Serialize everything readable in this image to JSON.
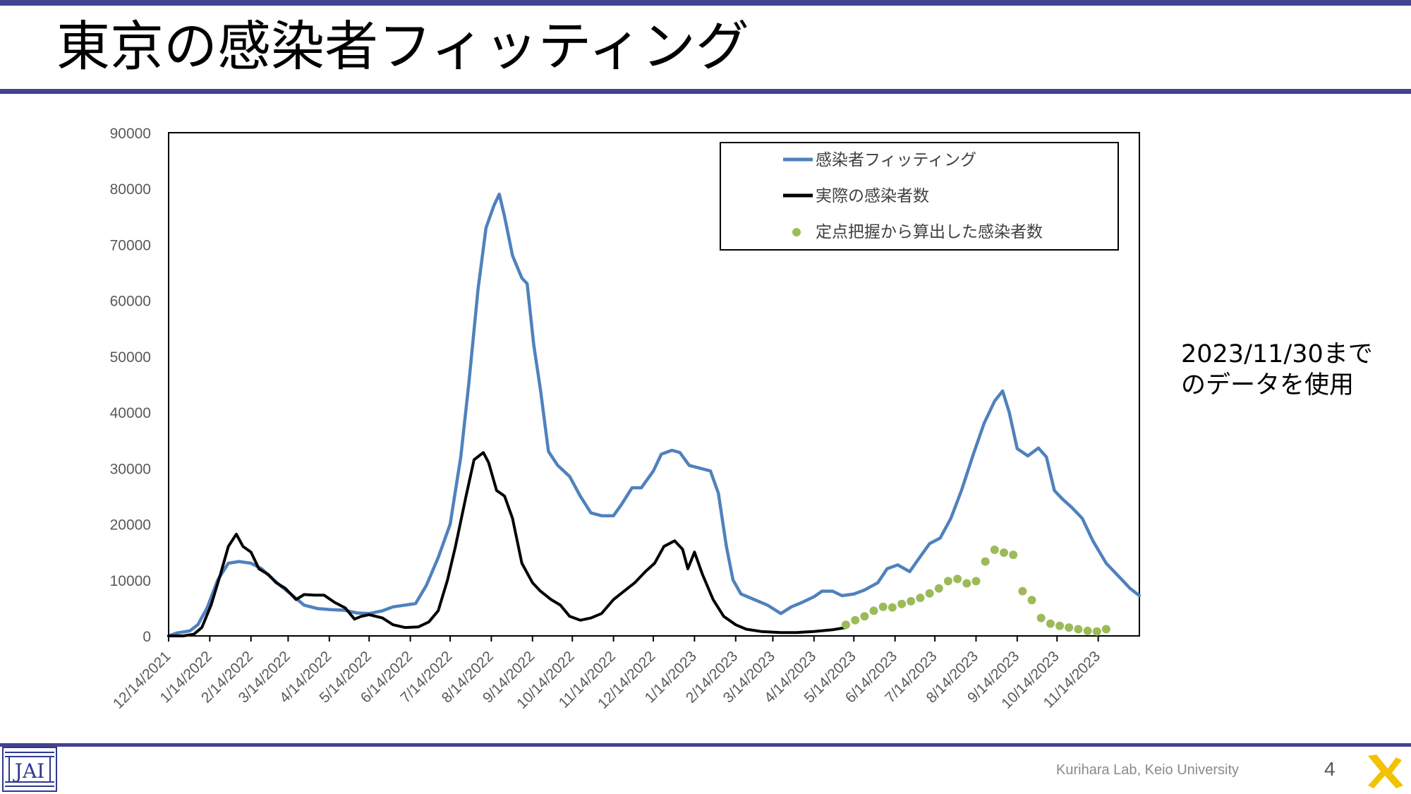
{
  "slide": {
    "title": "東京の感染者フィッティング",
    "note_line1": "2023/11/30まで",
    "note_line2": "のデータを使用",
    "footer": "Kurihara Lab, Keio University",
    "page_number": "4"
  },
  "colors": {
    "rule": "#43438f",
    "fit": "#4f81bd",
    "actual": "#000000",
    "estimate": "#9bbb59"
  },
  "chart_data": {
    "type": "line",
    "title": "",
    "xlabel": "",
    "ylabel": "",
    "ylim": [
      0,
      90000
    ],
    "yticks": [
      0,
      10000,
      20000,
      30000,
      40000,
      50000,
      60000,
      70000,
      80000,
      90000
    ],
    "x_start": "12/14/2021",
    "x_end": "12/15/2023",
    "xtick_labels": [
      "12/14/2021",
      "1/14/2022",
      "2/14/2022",
      "3/14/2022",
      "4/14/2022",
      "5/14/2022",
      "6/14/2022",
      "7/14/2022",
      "8/14/2022",
      "9/14/2022",
      "10/14/2022",
      "11/14/2022",
      "12/14/2022",
      "1/14/2023",
      "2/14/2023",
      "3/14/2023",
      "4/14/2023",
      "5/14/2023",
      "6/14/2023",
      "7/14/2023",
      "8/14/2023",
      "9/14/2023",
      "10/14/2023",
      "11/14/2023"
    ],
    "grid": false,
    "legend_position": "top-right",
    "series": [
      {
        "name": "感染者フィッティング",
        "style": "line",
        "color": "#4f81bd",
        "points": [
          [
            "12/14/2021",
            0
          ],
          [
            "12/20/2021",
            500
          ],
          [
            "12/30/2021",
            900
          ],
          [
            "1/5/2022",
            2000
          ],
          [
            "1/12/2022",
            5000
          ],
          [
            "1/20/2022",
            10000
          ],
          [
            "1/28/2022",
            13000
          ],
          [
            "2/5/2022",
            13300
          ],
          [
            "2/14/2022",
            13000
          ],
          [
            "2/22/2022",
            12000
          ],
          [
            "3/1/2022",
            10500
          ],
          [
            "3/8/2022",
            9000
          ],
          [
            "3/16/2022",
            7500
          ],
          [
            "3/26/2022",
            5500
          ],
          [
            "4/5/2022",
            4900
          ],
          [
            "4/15/2022",
            4700
          ],
          [
            "4/25/2022",
            4600
          ],
          [
            "5/5/2022",
            4100
          ],
          [
            "5/14/2022",
            4000
          ],
          [
            "5/24/2022",
            4500
          ],
          [
            "6/1/2022",
            5200
          ],
          [
            "6/10/2022",
            5500
          ],
          [
            "6/18/2022",
            5800
          ],
          [
            "6/26/2022",
            9000
          ],
          [
            "7/5/2022",
            14000
          ],
          [
            "7/14/2022",
            20000
          ],
          [
            "7/22/2022",
            32000
          ],
          [
            "7/28/2022",
            45000
          ],
          [
            "8/4/2022",
            62000
          ],
          [
            "8/10/2022",
            73000
          ],
          [
            "8/16/2022",
            77000
          ],
          [
            "8/20/2022",
            79000
          ],
          [
            "8/24/2022",
            75000
          ],
          [
            "8/30/2022",
            68000
          ],
          [
            "9/6/2022",
            64000
          ],
          [
            "9/10/2022",
            63000
          ],
          [
            "9/15/2022",
            52000
          ],
          [
            "9/20/2022",
            44000
          ],
          [
            "9/26/2022",
            33000
          ],
          [
            "10/3/2022",
            30500
          ],
          [
            "10/12/2022",
            28500
          ],
          [
            "10/20/2022",
            25000
          ],
          [
            "10/28/2022",
            22000
          ],
          [
            "11/5/2022",
            21500
          ],
          [
            "11/14/2022",
            21500
          ],
          [
            "11/20/2022",
            23500
          ],
          [
            "11/28/2022",
            26500
          ],
          [
            "12/5/2022",
            26500
          ],
          [
            "12/14/2022",
            29500
          ],
          [
            "12/20/2022",
            32500
          ],
          [
            "12/28/2022",
            33200
          ],
          [
            "1/3/2023",
            32800
          ],
          [
            "1/10/2023",
            30500
          ],
          [
            "1/18/2023",
            30000
          ],
          [
            "1/26/2023",
            29500
          ],
          [
            "2/1/2023",
            25500
          ],
          [
            "2/7/2023",
            16000
          ],
          [
            "2/12/2023",
            10000
          ],
          [
            "2/18/2023",
            7500
          ],
          [
            "2/28/2023",
            6500
          ],
          [
            "3/10/2023",
            5500
          ],
          [
            "3/20/2023",
            4000
          ],
          [
            "3/28/2023",
            5200
          ],
          [
            "4/5/2023",
            6000
          ],
          [
            "4/14/2023",
            7000
          ],
          [
            "4/20/2023",
            8000
          ],
          [
            "4/28/2023",
            8000
          ],
          [
            "5/5/2023",
            7200
          ],
          [
            "5/14/2023",
            7500
          ],
          [
            "5/22/2023",
            8200
          ],
          [
            "6/1/2023",
            9500
          ],
          [
            "6/8/2023",
            12000
          ],
          [
            "6/16/2023",
            12700
          ],
          [
            "6/25/2023",
            11500
          ],
          [
            "7/1/2023",
            13500
          ],
          [
            "7/10/2023",
            16500
          ],
          [
            "7/18/2023",
            17500
          ],
          [
            "7/26/2023",
            21000
          ],
          [
            "8/3/2023",
            26000
          ],
          [
            "8/12/2023",
            32500
          ],
          [
            "8/20/2023",
            38000
          ],
          [
            "8/28/2023",
            42000
          ],
          [
            "9/3/2023",
            43800
          ],
          [
            "9/8/2023",
            40000
          ],
          [
            "9/14/2023",
            33500
          ],
          [
            "9/22/2023",
            32200
          ],
          [
            "9/30/2023",
            33600
          ],
          [
            "10/6/2023",
            32000
          ],
          [
            "10/12/2023",
            26000
          ],
          [
            "10/18/2023",
            24500
          ],
          [
            "10/25/2023",
            23000
          ],
          [
            "11/2/2023",
            21000
          ],
          [
            "11/10/2023",
            17000
          ],
          [
            "11/20/2023",
            13000
          ],
          [
            "11/30/2023",
            10500
          ],
          [
            "12/8/2023",
            8500
          ],
          [
            "12/15/2023",
            7200
          ]
        ]
      },
      {
        "name": "実際の感染者数",
        "style": "line",
        "color": "#000000",
        "points": [
          [
            "12/14/2021",
            0
          ],
          [
            "12/25/2021",
            0
          ],
          [
            "1/2/2022",
            300
          ],
          [
            "1/8/2022",
            1500
          ],
          [
            "1/15/2022",
            5500
          ],
          [
            "1/22/2022",
            11000
          ],
          [
            "1/28/2022",
            16000
          ],
          [
            "2/3/2022",
            18200
          ],
          [
            "2/8/2022",
            16000
          ],
          [
            "2/14/2022",
            15000
          ],
          [
            "2/20/2022",
            12000
          ],
          [
            "2/27/2022",
            11000
          ],
          [
            "3/5/2022",
            9500
          ],
          [
            "3/12/2022",
            8500
          ],
          [
            "3/20/2022",
            6500
          ],
          [
            "3/26/2022",
            7400
          ],
          [
            "4/3/2022",
            7300
          ],
          [
            "4/10/2022",
            7300
          ],
          [
            "4/18/2022",
            6000
          ],
          [
            "4/26/2022",
            5000
          ],
          [
            "5/3/2022",
            3000
          ],
          [
            "5/8/2022",
            3500
          ],
          [
            "5/14/2022",
            3800
          ],
          [
            "5/24/2022",
            3200
          ],
          [
            "6/1/2022",
            2000
          ],
          [
            "6/10/2022",
            1500
          ],
          [
            "6/20/2022",
            1600
          ],
          [
            "6/28/2022",
            2500
          ],
          [
            "7/5/2022",
            4500
          ],
          [
            "7/12/2022",
            10000
          ],
          [
            "7/18/2022",
            16000
          ],
          [
            "7/26/2022",
            25000
          ],
          [
            "8/1/2022",
            31500
          ],
          [
            "8/8/2022",
            32800
          ],
          [
            "8/12/2022",
            31000
          ],
          [
            "8/18/2022",
            26000
          ],
          [
            "8/24/2022",
            25000
          ],
          [
            "8/30/2022",
            21000
          ],
          [
            "9/6/2022",
            13000
          ],
          [
            "9/14/2022",
            9500
          ],
          [
            "9/20/2022",
            8000
          ],
          [
            "9/28/2022",
            6500
          ],
          [
            "10/5/2022",
            5500
          ],
          [
            "10/12/2022",
            3500
          ],
          [
            "10/20/2022",
            2800
          ],
          [
            "10/28/2022",
            3200
          ],
          [
            "11/5/2022",
            4000
          ],
          [
            "11/14/2022",
            6500
          ],
          [
            "11/22/2022",
            8000
          ],
          [
            "11/30/2022",
            9500
          ],
          [
            "12/8/2022",
            11500
          ],
          [
            "12/15/2022",
            13000
          ],
          [
            "12/22/2022",
            16000
          ],
          [
            "12/30/2022",
            17000
          ],
          [
            "1/5/2023",
            15500
          ],
          [
            "1/9/2023",
            12000
          ],
          [
            "1/14/2023",
            15000
          ],
          [
            "1/20/2023",
            11000
          ],
          [
            "1/28/2023",
            6500
          ],
          [
            "2/5/2023",
            3500
          ],
          [
            "2/14/2023",
            2000
          ],
          [
            "2/22/2023",
            1200
          ],
          [
            "3/5/2023",
            800
          ],
          [
            "3/20/2023",
            600
          ],
          [
            "4/1/2023",
            600
          ],
          [
            "4/14/2023",
            800
          ],
          [
            "4/28/2023",
            1100
          ],
          [
            "5/8/2023",
            1500
          ]
        ]
      },
      {
        "name": "定点把握から算出した感染者数",
        "style": "points",
        "color": "#9bbb59",
        "points": [
          [
            "5/8/2023",
            2000
          ],
          [
            "5/15/2023",
            2800
          ],
          [
            "5/22/2023",
            3500
          ],
          [
            "5/29/2023",
            4500
          ],
          [
            "6/5/2023",
            5200
          ],
          [
            "6/12/2023",
            5100
          ],
          [
            "6/19/2023",
            5700
          ],
          [
            "6/26/2023",
            6200
          ],
          [
            "7/3/2023",
            6800
          ],
          [
            "7/10/2023",
            7600
          ],
          [
            "7/17/2023",
            8500
          ],
          [
            "7/24/2023",
            9800
          ],
          [
            "7/31/2023",
            10200
          ],
          [
            "8/7/2023",
            9400
          ],
          [
            "8/14/2023",
            9800
          ],
          [
            "8/21/2023",
            13300
          ],
          [
            "8/28/2023",
            15400
          ],
          [
            "9/4/2023",
            14900
          ],
          [
            "9/11/2023",
            14500
          ],
          [
            "9/18/2023",
            8000
          ],
          [
            "9/25/2023",
            6400
          ],
          [
            "10/2/2023",
            3200
          ],
          [
            "10/9/2023",
            2200
          ],
          [
            "10/16/2023",
            1800
          ],
          [
            "10/23/2023",
            1500
          ],
          [
            "10/30/2023",
            1200
          ],
          [
            "11/6/2023",
            900
          ],
          [
            "11/13/2023",
            800
          ],
          [
            "11/20/2023",
            1200
          ]
        ]
      }
    ]
  }
}
